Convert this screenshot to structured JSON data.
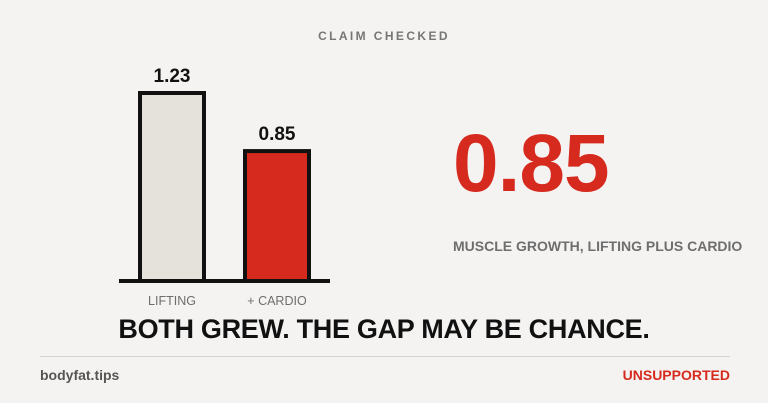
{
  "header": {
    "eyebrow": "CLAIM CHECKED"
  },
  "chart_data": {
    "type": "bar",
    "categories": [
      "LIFTING",
      "+ CARDIO"
    ],
    "values": [
      1.23,
      0.85
    ],
    "value_labels": [
      "1.23",
      "0.85"
    ],
    "colors": [
      "#e5e2dc",
      "#d62a1e"
    ],
    "outline_color": "#111111",
    "ylim": [
      0,
      1.23
    ]
  },
  "highlight": {
    "value": "0.85",
    "caption": "MUSCLE GROWTH, LIFTING PLUS CARDIO",
    "color": "#d62a1e"
  },
  "headline": "BOTH GREW. THE GAP MAY BE CHANCE.",
  "footer": {
    "site": "bodyfat.tips",
    "verdict": "UNSUPPORTED"
  }
}
